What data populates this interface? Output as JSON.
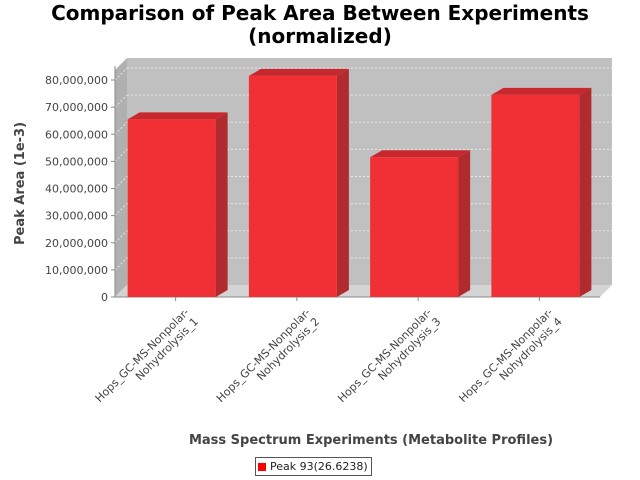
{
  "chart_data": {
    "type": "bar",
    "title_lines": [
      "Comparison of Peak Area Between Experiments",
      "(normalized)"
    ],
    "xlabel": "Mass Spectrum Experiments (Metabolite Profiles)",
    "ylabel": "Peak Area (1e-3)",
    "ylim": [
      0,
      85000000
    ],
    "yticks": [
      0,
      10000000,
      20000000,
      30000000,
      40000000,
      50000000,
      60000000,
      70000000,
      80000000
    ],
    "ytick_labels": [
      "0",
      "10,000,000",
      "20,000,000",
      "30,000,000",
      "40,000,000",
      "50,000,000",
      "60,000,000",
      "70,000,000",
      "80,000,000"
    ],
    "categories": [
      [
        "Hops_GC-MS-Nonpolar-",
        "Nohydrolysis_1"
      ],
      [
        "Hops_GC-MS-Nonpolar-",
        "Nohydrolysis_2"
      ],
      [
        "Hops_GC-MS-Nonpolar-",
        "Nohydrolysis_3"
      ],
      [
        "Hops_GC-MS-Nonpolar-",
        "Nohydrolysis_4"
      ]
    ],
    "series": [
      {
        "name": "Peak 93(26.6238)",
        "values": [
          65500000,
          81500000,
          51500000,
          74500000
        ],
        "color": "#f03035"
      }
    ],
    "grid": true,
    "legend_position": "bottom",
    "background": "#c0c0c0"
  }
}
